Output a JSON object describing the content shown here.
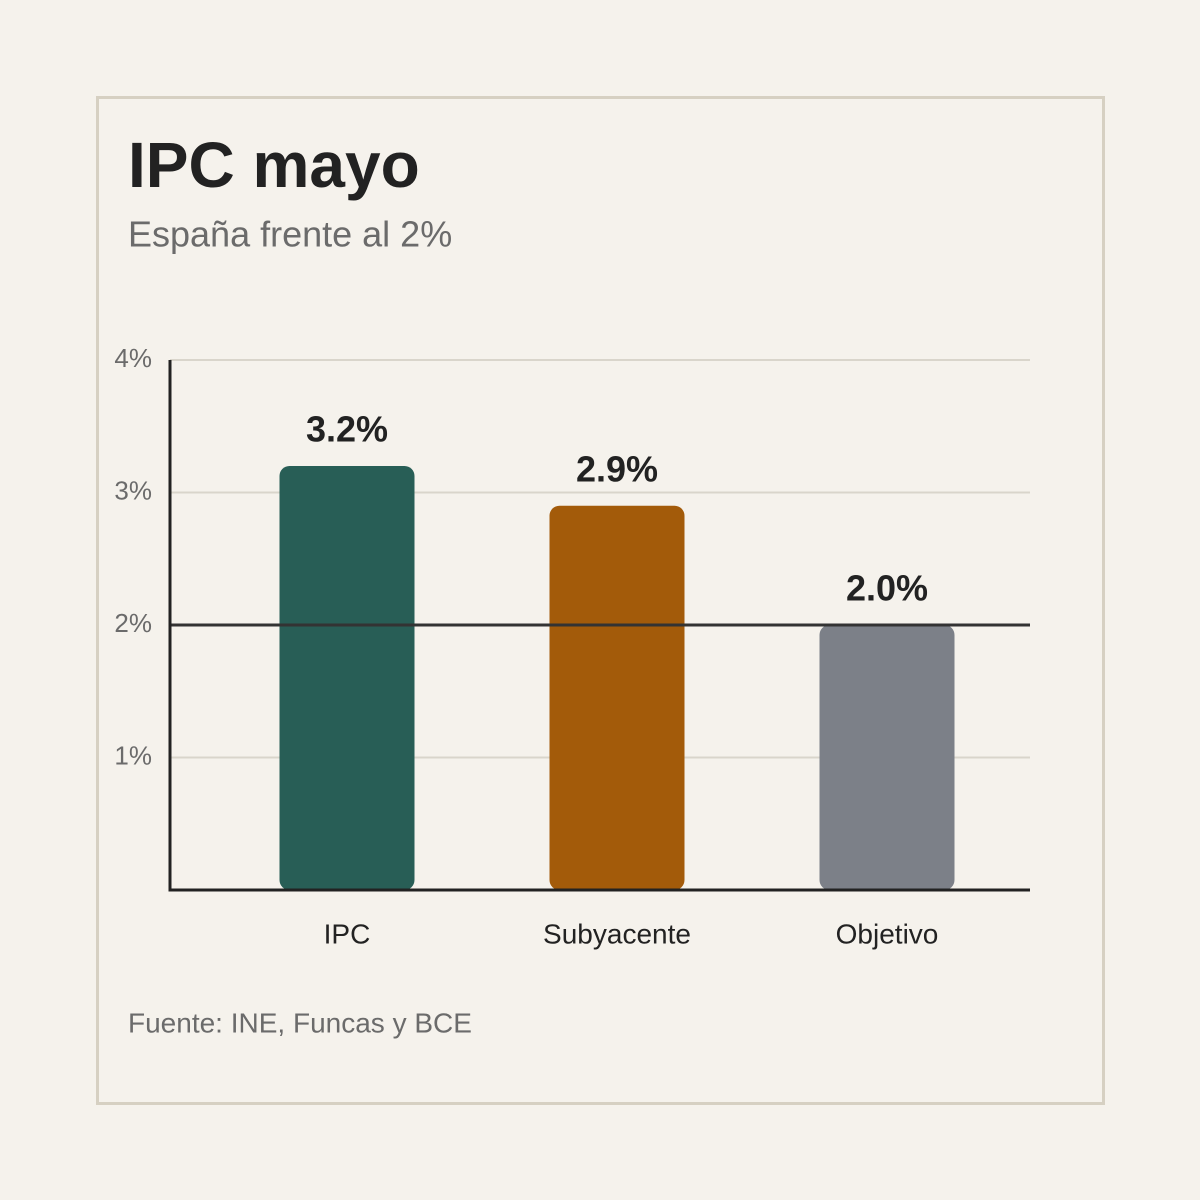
{
  "chart_data": {
    "type": "bar",
    "title": "IPC mayo",
    "subtitle": "España frente al 2%",
    "source": "Fuente: INE, Funcas y BCE",
    "categories": [
      "IPC",
      "Subyacente",
      "Objetivo"
    ],
    "values": [
      3.2,
      2.9,
      2.0
    ],
    "value_labels": [
      "3.2%",
      "2.9%",
      "2.0%"
    ],
    "colors": [
      "#285e56",
      "#a35b0a",
      "#7c8088"
    ],
    "ylim": [
      0,
      4
    ],
    "yticks": [
      {
        "value": 1,
        "label": "1%"
      },
      {
        "value": 2,
        "label": "2%"
      },
      {
        "value": 3,
        "label": "3%"
      },
      {
        "value": 4,
        "label": "4%"
      }
    ],
    "grid": true,
    "reference_line": 2
  }
}
